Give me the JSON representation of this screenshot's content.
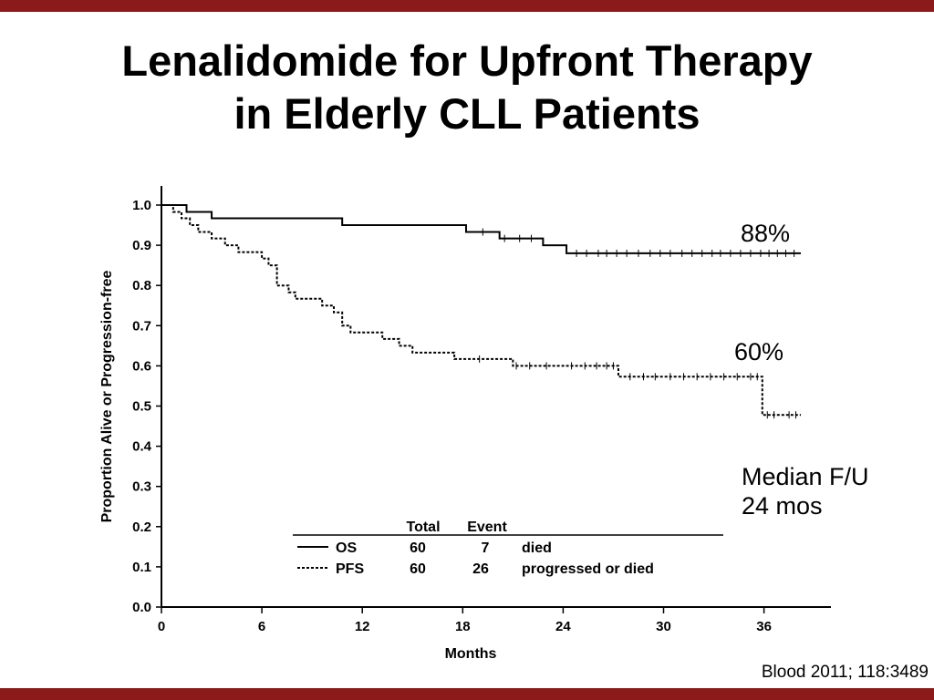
{
  "slide": {
    "title_line1": "Lenalidomide for Upfront Therapy",
    "title_line2": "in Elderly CLL Patients",
    "citation": "Blood 2011; 118:3489",
    "accent_color": "#8b1a1a"
  },
  "annotations": {
    "os_pct": "88%",
    "pfs_pct": "60%",
    "median_line1": "Median F/U",
    "median_line2": "24 mos"
  },
  "legend": {
    "headers": [
      "Total",
      "Event"
    ],
    "rows": [
      {
        "name": "OS",
        "total": "60",
        "event": "7",
        "desc": "died",
        "style": "solid"
      },
      {
        "name": "PFS",
        "total": "60",
        "event": "26",
        "desc": "progressed or died",
        "style": "dotted"
      }
    ]
  },
  "chart_data": {
    "type": "line",
    "xlabel": "Months",
    "ylabel": "Proportion Alive or Progression-free",
    "xlim": [
      0,
      40
    ],
    "ylim": [
      0,
      1.0
    ],
    "x_ticks": [
      0,
      6,
      12,
      18,
      24,
      30,
      36
    ],
    "y_ticks": [
      "0.0",
      "0.1",
      "0.2",
      "0.3",
      "0.4",
      "0.5",
      "0.6",
      "0.7",
      "0.8",
      "0.9",
      "1.0"
    ],
    "series": [
      {
        "name": "OS",
        "style": "solid",
        "step_x": [
          0,
          1.5,
          3,
          10.8,
          18.2,
          20.2,
          22.8,
          24.2,
          38.2
        ],
        "step_y": [
          1.0,
          0.983,
          0.967,
          0.95,
          0.933,
          0.917,
          0.9,
          0.88,
          0.88
        ],
        "censor_x": [
          19.2,
          20.5,
          21.4,
          22.1,
          24.8,
          25.4,
          26.1,
          26.6,
          27.2,
          27.8,
          28.5,
          29.2,
          29.8,
          30.4,
          31.1,
          31.7,
          32.3,
          32.9,
          33.4,
          34.0,
          34.6,
          35.2,
          35.8,
          36.3,
          36.8,
          37.3,
          37.8
        ],
        "censor_y": [
          0.933,
          0.917,
          0.917,
          0.917,
          0.88,
          0.88,
          0.88,
          0.88,
          0.88,
          0.88,
          0.88,
          0.88,
          0.88,
          0.88,
          0.88,
          0.88,
          0.88,
          0.88,
          0.88,
          0.88,
          0.88,
          0.88,
          0.88,
          0.88,
          0.88,
          0.88,
          0.88
        ]
      },
      {
        "name": "PFS",
        "style": "dotted",
        "step_x": [
          0,
          0.7,
          1.2,
          1.7,
          2.2,
          3.0,
          3.8,
          4.6,
          6.0,
          6.4,
          6.9,
          7.6,
          8.0,
          9.6,
          10.3,
          10.8,
          11.3,
          13.2,
          14.2,
          15.0,
          16.5,
          17.5,
          20.5,
          21.0,
          27.3,
          35.9,
          38.2
        ],
        "step_y": [
          1.0,
          0.983,
          0.967,
          0.95,
          0.933,
          0.917,
          0.9,
          0.883,
          0.867,
          0.85,
          0.8,
          0.783,
          0.767,
          0.75,
          0.733,
          0.7,
          0.683,
          0.667,
          0.65,
          0.633,
          0.633,
          0.617,
          0.617,
          0.6,
          0.573,
          0.478,
          0.478
        ],
        "censor_x": [
          19.0,
          21.2,
          22.0,
          23.0,
          24.5,
          25.3,
          26.0,
          26.6,
          27.0,
          28.0,
          28.8,
          29.5,
          30.4,
          31.2,
          32.0,
          32.8,
          33.6,
          34.4,
          35.2,
          35.6,
          36.2,
          36.6,
          37.5,
          37.9
        ],
        "censor_y": [
          0.617,
          0.6,
          0.6,
          0.6,
          0.6,
          0.6,
          0.6,
          0.6,
          0.6,
          0.573,
          0.573,
          0.573,
          0.573,
          0.573,
          0.573,
          0.573,
          0.573,
          0.573,
          0.573,
          0.573,
          0.478,
          0.478,
          0.478,
          0.478
        ]
      }
    ]
  }
}
